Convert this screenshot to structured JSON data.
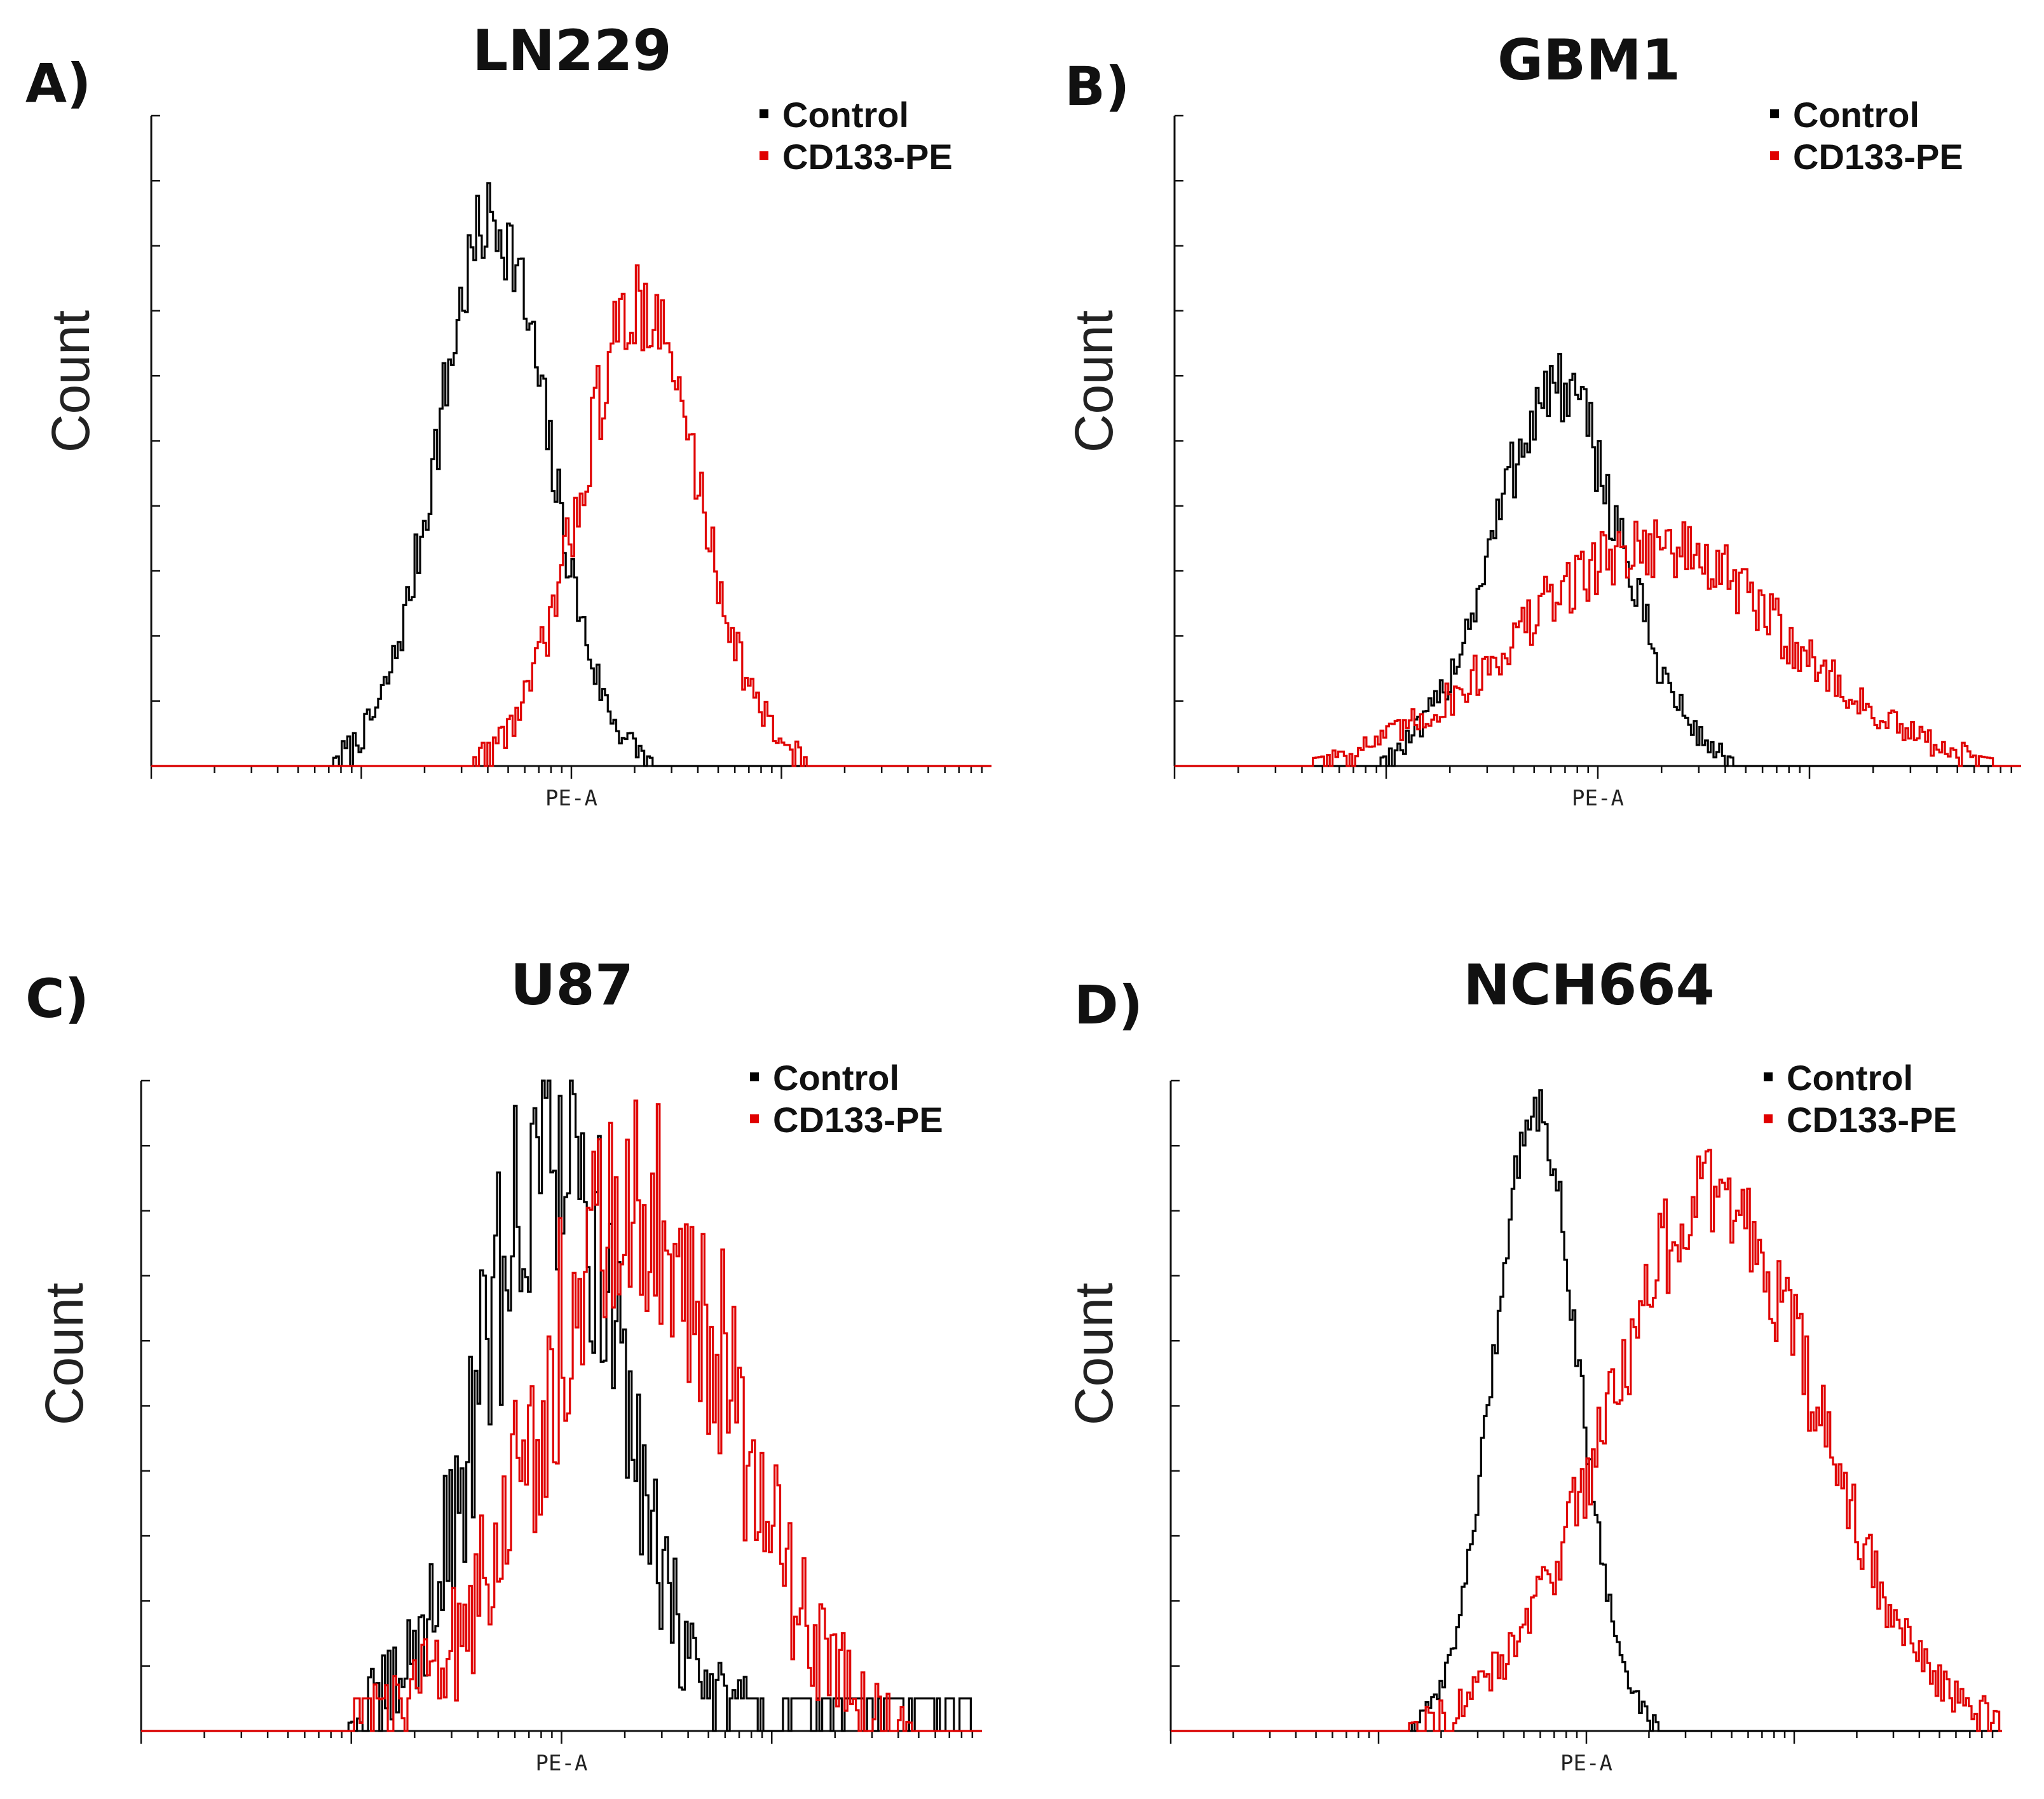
{
  "chart_data": [
    {
      "type": "histogram",
      "panel": "A)",
      "title": "LN229",
      "xlabel": "PE-A",
      "ylabel": "Count",
      "xscale": "log",
      "xlim": [
        10,
        100000
      ],
      "ylim": [
        0,
        100
      ],
      "legend_position": "top-right",
      "series": [
        {
          "name": "Control",
          "color": "#000000",
          "peaks": [
            {
              "center_log": 2.62,
              "width_log": 0.26,
              "height": 84,
              "noise": 7
            }
          ]
        },
        {
          "name": "CD133-PE",
          "color": "#e00000",
          "peaks": [
            {
              "center_log": 3.32,
              "width_log": 0.28,
              "height": 71,
              "noise": 7
            }
          ]
        }
      ]
    },
    {
      "type": "histogram",
      "panel": "B)",
      "title": "GBM1",
      "xlabel": "PE-A",
      "ylabel": "Count",
      "xscale": "log",
      "xlim": [
        10,
        100000
      ],
      "ylim": [
        0,
        100
      ],
      "legend_position": "top-right",
      "series": [
        {
          "name": "Control",
          "color": "#000000",
          "peaks": [
            {
              "center_log": 2.8,
              "width_log": 0.3,
              "height": 58,
              "noise": 6
            }
          ]
        },
        {
          "name": "CD133-PE",
          "color": "#e00000",
          "peaks": [
            {
              "center_log": 3.25,
              "width_log": 0.62,
              "height": 34,
              "noise": 5
            }
          ]
        }
      ]
    },
    {
      "type": "histogram",
      "panel": "C)",
      "title": "U87",
      "xlabel": "PE-A",
      "ylabel": "Count",
      "xscale": "log",
      "xlim": [
        10,
        100000
      ],
      "ylim": [
        0,
        100
      ],
      "legend_position": "top-right",
      "series": [
        {
          "name": "Control",
          "color": "#000000",
          "peaks": [
            {
              "center_log": 2.95,
              "width_log": 0.33,
              "height": 90,
              "noise": 20
            }
          ],
          "baseline": 5,
          "tail_to_log": 4.95
        },
        {
          "name": "CD133-PE",
          "color": "#e00000",
          "peaks": [
            {
              "center_log": 3.35,
              "width_log": 0.45,
              "height": 85,
              "noise": 20
            }
          ],
          "baseline": 5,
          "tail_from_log": 2.0
        }
      ]
    },
    {
      "type": "histogram",
      "panel": "D)",
      "title": "NCH664",
      "xlabel": "PE-A",
      "ylabel": "Count",
      "xscale": "log",
      "xlim": [
        10,
        100000
      ],
      "ylim": [
        0,
        100
      ],
      "legend_position": "top-right",
      "series": [
        {
          "name": "Control",
          "color": "#000000",
          "peaks": [
            {
              "center_log": 2.75,
              "width_log": 0.2,
              "height": 96,
              "noise": 4
            }
          ]
        },
        {
          "name": "CD133-PE",
          "color": "#e00000",
          "peaks": [
            {
              "center_log": 3.6,
              "width_log": 0.5,
              "height": 82,
              "noise": 8
            }
          ]
        }
      ]
    }
  ],
  "colors": {
    "control": "#000000",
    "cd133": "#e00000"
  }
}
